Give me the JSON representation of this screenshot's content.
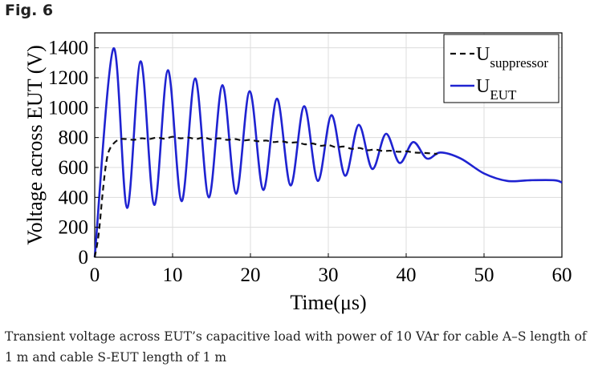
{
  "figure_label": "Fig. 6",
  "caption": "Transient voltage across EUT’s capacitive load with power of 10 VAr for cable A–S length of 1 m and cable S-EUT length of 1 m",
  "chart_data": {
    "type": "line",
    "xlabel": "Time(μs)",
    "ylabel": "Voltage across EUT (V)",
    "xlim": [
      0,
      60
    ],
    "ylim": [
      0,
      1500
    ],
    "xticks": [
      0,
      10,
      20,
      30,
      40,
      50,
      60
    ],
    "yticks": [
      0,
      200,
      400,
      600,
      800,
      1000,
      1200,
      1400
    ],
    "grid": true,
    "legend_position": "top-right",
    "legend": [
      {
        "base": "U",
        "sub": "suppressor",
        "style": "dashed",
        "color": "#111111"
      },
      {
        "base": "U",
        "sub": "EUT",
        "style": "solid",
        "color": "#1f23d1"
      }
    ],
    "series": [
      {
        "name": "U_suppressor",
        "style": "dashed",
        "color": "#111111",
        "x": [
          0,
          0.5,
          1,
          1.5,
          2,
          3,
          4,
          5,
          6,
          7,
          8,
          9,
          10,
          11,
          12,
          13,
          14,
          15,
          16,
          17,
          18,
          19,
          20,
          21,
          22,
          23,
          24,
          25,
          26,
          27,
          28,
          29,
          30,
          31,
          32,
          33,
          34,
          35,
          36,
          37,
          38,
          39,
          40,
          41,
          42,
          43,
          44
        ],
        "y": [
          0,
          150,
          420,
          640,
          730,
          785,
          790,
          785,
          795,
          790,
          800,
          792,
          805,
          795,
          800,
          790,
          800,
          788,
          795,
          785,
          790,
          780,
          785,
          775,
          780,
          770,
          775,
          765,
          768,
          755,
          760,
          745,
          750,
          735,
          740,
          725,
          730,
          715,
          720,
          710,
          712,
          705,
          708,
          700,
          698,
          695,
          690
        ]
      },
      {
        "name": "U_EUT",
        "style": "solid",
        "color": "#1f23d1",
        "x": [
          0,
          2.4,
          4.15,
          5.9,
          7.65,
          9.4,
          11.15,
          12.9,
          14.65,
          16.4,
          18.15,
          19.9,
          21.65,
          23.4,
          25.15,
          26.9,
          28.65,
          30.4,
          32.15,
          33.9,
          35.65,
          37.4,
          39.15,
          40.9,
          42.65,
          44.4,
          47,
          50,
          53,
          56,
          59,
          60
        ],
        "y": [
          0,
          1395,
          330,
          1310,
          350,
          1250,
          375,
          1195,
          400,
          1150,
          425,
          1110,
          450,
          1060,
          480,
          1010,
          510,
          950,
          545,
          885,
          590,
          825,
          630,
          770,
          660,
          700,
          660,
          560,
          510,
          515,
          515,
          500
        ]
      }
    ]
  }
}
